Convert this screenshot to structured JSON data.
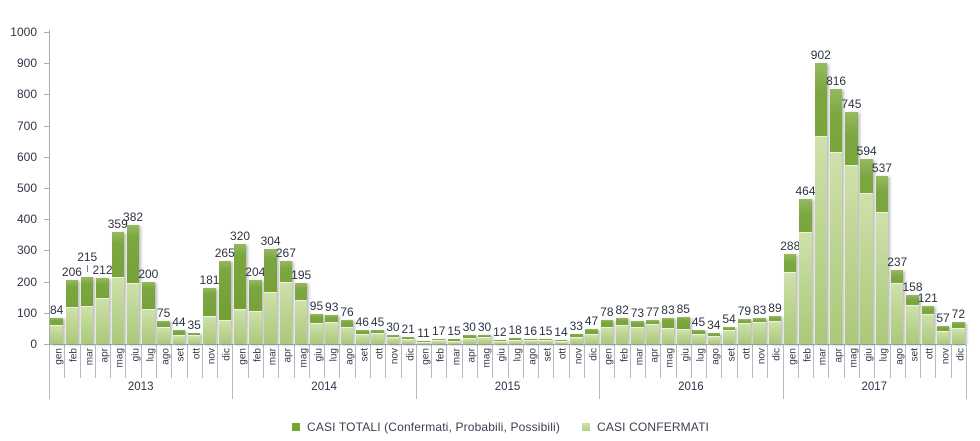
{
  "chart_data": {
    "type": "bar",
    "title": "",
    "xlabel": "",
    "ylabel": "",
    "ylim": [
      0,
      1000
    ],
    "yticks": [
      0,
      100,
      200,
      300,
      400,
      500,
      600,
      700,
      800,
      900,
      1000
    ],
    "grid": false,
    "legend_position": "bottom",
    "years": [
      "2013",
      "2014",
      "2015",
      "2016",
      "2017"
    ],
    "months": [
      "gen",
      "feb",
      "mar",
      "apr",
      "mag",
      "giu",
      "lug",
      "ago",
      "set",
      "ott",
      "nov",
      "dic"
    ],
    "series": [
      {
        "name": "CASI TOTALI (Confermati, Probabili, Possibili)",
        "color": "#76a335",
        "values": [
          84,
          206,
          215,
          212,
          359,
          382,
          200,
          75,
          44,
          35,
          181,
          265,
          320,
          204,
          304,
          267,
          195,
          95,
          93,
          76,
          46,
          45,
          30,
          21,
          11,
          17,
          15,
          30,
          30,
          12,
          18,
          16,
          15,
          14,
          33,
          47,
          78,
          82,
          73,
          77,
          83,
          85,
          45,
          34,
          54,
          79,
          83,
          89,
          288,
          464,
          902,
          816,
          745,
          594,
          537,
          237,
          158,
          121,
          57,
          72
        ]
      },
      {
        "name": "CASI CONFERMATI",
        "color": "#c2d998",
        "values": [
          60,
          120,
          122,
          146,
          214,
          196,
          113,
          53,
          28,
          29,
          90,
          78,
          112,
          106,
          167,
          200,
          140,
          67,
          70,
          54,
          31,
          36,
          21,
          16,
          8,
          13,
          11,
          20,
          21,
          9,
          12,
          12,
          12,
          11,
          22,
          33,
          56,
          62,
          56,
          65,
          52,
          49,
          33,
          26,
          45,
          67,
          70,
          75,
          230,
          358,
          667,
          614,
          574,
          483,
          424,
          194,
          125,
          95,
          42,
          52
        ]
      }
    ]
  }
}
